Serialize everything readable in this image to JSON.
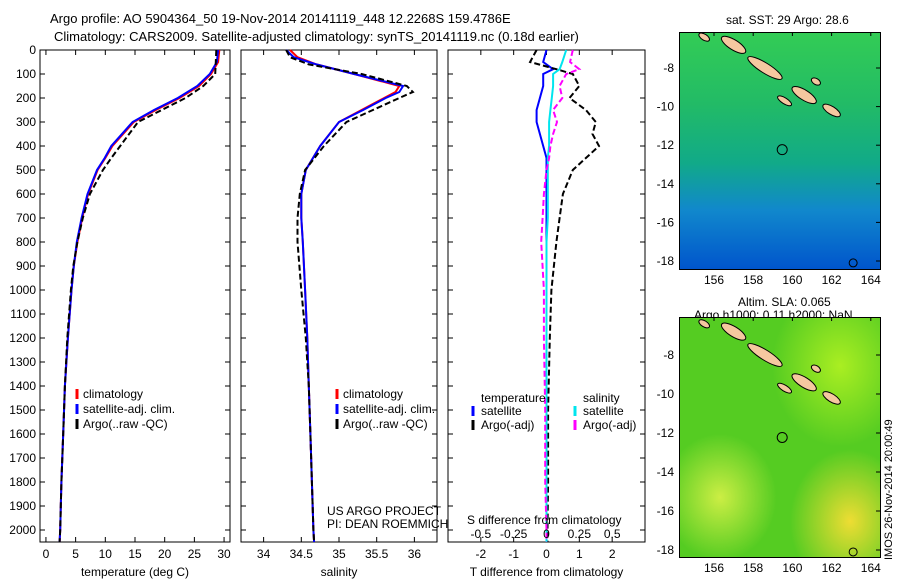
{
  "title": {
    "line1": "Argo profile: AO 5904364_50 19-Nov-2014 20141119_448 12.2268S 159.4786E",
    "line2": "Climatology: CARS2009. Satellite-adjusted climatology: synTS_20141119.nc (0.18d earlier)"
  },
  "colors": {
    "climatology": "#ff0000",
    "satellite": "#0000ff",
    "argo": "#000000",
    "sal_sat": "#00e5ee",
    "sal_argo": "#ff00ff"
  },
  "chart_data": [
    {
      "type": "line",
      "xlabel": "temperature (deg C)",
      "ylabel": "",
      "xlim": [
        -1,
        31
      ],
      "ylim": [
        2050,
        0
      ],
      "xticks": [
        0,
        5,
        10,
        15,
        20,
        25,
        30
      ],
      "yticks": [
        0,
        100,
        200,
        300,
        400,
        500,
        600,
        700,
        800,
        900,
        1000,
        1100,
        1200,
        1300,
        1400,
        1500,
        1600,
        1700,
        1800,
        1900,
        2000
      ],
      "legend": [
        "climatology",
        "satellite-adj. clim.",
        "Argo(..raw -QC)"
      ],
      "depth": [
        0,
        50,
        100,
        150,
        200,
        250,
        300,
        400,
        450,
        500,
        600,
        700,
        800,
        900,
        1000,
        1200,
        1400,
        1600,
        1800,
        2000,
        2050
      ],
      "series": [
        {
          "name": "climatology",
          "values": [
            29.2,
            29,
            27.8,
            25.8,
            22.5,
            18.5,
            14.8,
            11.2,
            10,
            8.7,
            7.1,
            6.1,
            5.3,
            4.7,
            4.3,
            3.7,
            3.2,
            2.9,
            2.6,
            2.4,
            2.3
          ]
        },
        {
          "name": "satellite-adj. clim.",
          "values": [
            29,
            28.8,
            27.6,
            25.5,
            22.2,
            18.2,
            14.6,
            11,
            9.9,
            8.6,
            7,
            6,
            5.2,
            4.7,
            4.3,
            3.7,
            3.2,
            2.9,
            2.6,
            2.4,
            2.3
          ]
        },
        {
          "name": "Argo(..raw -QC)",
          "values": [
            28.7,
            28.6,
            28.5,
            26.5,
            23.5,
            19.5,
            15.5,
            12.5,
            11,
            9.6,
            7.4,
            6.2,
            5.3,
            4.6,
            4.2,
            3.6,
            3.2,
            2.9,
            2.6,
            2.4,
            2.3
          ]
        }
      ]
    },
    {
      "type": "line",
      "xlabel": "salinity",
      "xlim": [
        33.7,
        36.3
      ],
      "ylim": [
        2050,
        0
      ],
      "xticks": [
        34,
        34.5,
        35,
        35.5,
        36
      ],
      "legend": [
        "climatology",
        "satellite-adj. clim.",
        "Argo(..raw -QC)"
      ],
      "annotation": [
        "US ARGO PROJECT",
        "PI: DEAN ROEMMICH"
      ],
      "depth": [
        0,
        30,
        60,
        100,
        150,
        175,
        200,
        250,
        300,
        400,
        500,
        600,
        700,
        800,
        1000,
        1200,
        1400,
        1600,
        1800,
        2000,
        2050
      ],
      "series": [
        {
          "name": "climatology",
          "values": [
            34.35,
            34.45,
            34.7,
            35.2,
            35.8,
            35.75,
            35.6,
            35.3,
            35.0,
            34.75,
            34.56,
            34.5,
            34.5,
            34.52,
            34.55,
            34.58,
            34.6,
            34.62,
            34.64,
            34.66,
            34.67
          ]
        },
        {
          "name": "satellite-adj. clim.",
          "values": [
            34.3,
            34.4,
            34.7,
            35.2,
            35.85,
            35.8,
            35.62,
            35.32,
            35.0,
            34.75,
            34.56,
            34.5,
            34.5,
            34.52,
            34.55,
            34.58,
            34.6,
            34.62,
            34.64,
            34.66,
            34.67
          ]
        },
        {
          "name": "Argo(..raw -QC)",
          "values": [
            34.3,
            34.35,
            34.6,
            35.3,
            35.9,
            35.98,
            35.8,
            35.45,
            35.1,
            34.8,
            34.55,
            34.48,
            34.45,
            34.45,
            34.5,
            34.56,
            34.6,
            34.62,
            34.64,
            34.66,
            34.67
          ]
        }
      ]
    },
    {
      "type": "line",
      "xlabel": "T difference from climatology",
      "x2label": "S difference from climatology",
      "xlim": [
        -3,
        3
      ],
      "ylim": [
        2050,
        0
      ],
      "xticks": [
        -2,
        -1,
        0,
        1,
        2
      ],
      "x2ticks": [
        -0.5,
        -0.25,
        0,
        0.25,
        0.5
      ],
      "x2ticklabels": [
        "-0.5",
        "-0.25",
        "0",
        "0.25",
        "0.5"
      ],
      "legend_headers": [
        "temperature",
        "salinity"
      ],
      "legend": [
        "satellite",
        "Argo(-adj)",
        "satellite",
        "Argo(-adj)"
      ],
      "depth": [
        0,
        50,
        80,
        100,
        150,
        200,
        250,
        300,
        350,
        400,
        450,
        500,
        600,
        700,
        800,
        1000,
        1200,
        1500,
        1800,
        2000,
        2050
      ],
      "series": [
        {
          "name": "T satellite",
          "values": [
            0,
            -0.1,
            0.2,
            -0.1,
            -0.1,
            -0.2,
            -0.3,
            -0.3,
            -0.2,
            -0.1,
            0,
            0,
            0,
            0,
            0,
            0,
            0,
            0,
            0,
            0,
            0
          ]
        },
        {
          "name": "T Argo(-adj)",
          "values": [
            -0.3,
            -0.5,
            0.3,
            0.8,
            1.0,
            0.7,
            1.2,
            1.5,
            1.4,
            1.6,
            1.2,
            0.8,
            0.5,
            0.4,
            0.3,
            0.15,
            0.1,
            0.05,
            0.05,
            0.03,
            0.03
          ]
        },
        {
          "name": "S satellite",
          "values": [
            0.15,
            0.12,
            0.1,
            0.05,
            0.05,
            0.04,
            0.03,
            0.02,
            0.02,
            0.02,
            0.01,
            0.01,
            0.01,
            0.01,
            0.0,
            0.0,
            0.0,
            0.0,
            0.0,
            0.0,
            0.0
          ]
        },
        {
          "name": "S Argo(-adj)",
          "values": [
            0.2,
            0.18,
            0.25,
            0.15,
            0.1,
            0.12,
            0.05,
            0.08,
            0.05,
            0.03,
            0.02,
            0.0,
            -0.02,
            -0.03,
            -0.04,
            -0.02,
            -0.02,
            -0.01,
            -0.01,
            0.0,
            0.0
          ]
        }
      ]
    }
  ],
  "maps": [
    {
      "title": "sat. SST: 29 Argo: 28.6",
      "xticks": [
        156,
        158,
        160,
        162,
        164
      ],
      "yticks": [
        -8,
        -10,
        -12,
        -14,
        -16,
        -18
      ]
    },
    {
      "title1": "Altim. SLA: 0.065",
      "title2": "Argo h1000: 0.11 h2000: NaN",
      "xticks": [
        156,
        158,
        160,
        162,
        164
      ],
      "yticks": [
        -8,
        -10,
        -12,
        -14,
        -16,
        -18
      ]
    }
  ],
  "footer": "IMOS 26-Nov-2014 20:00:49"
}
